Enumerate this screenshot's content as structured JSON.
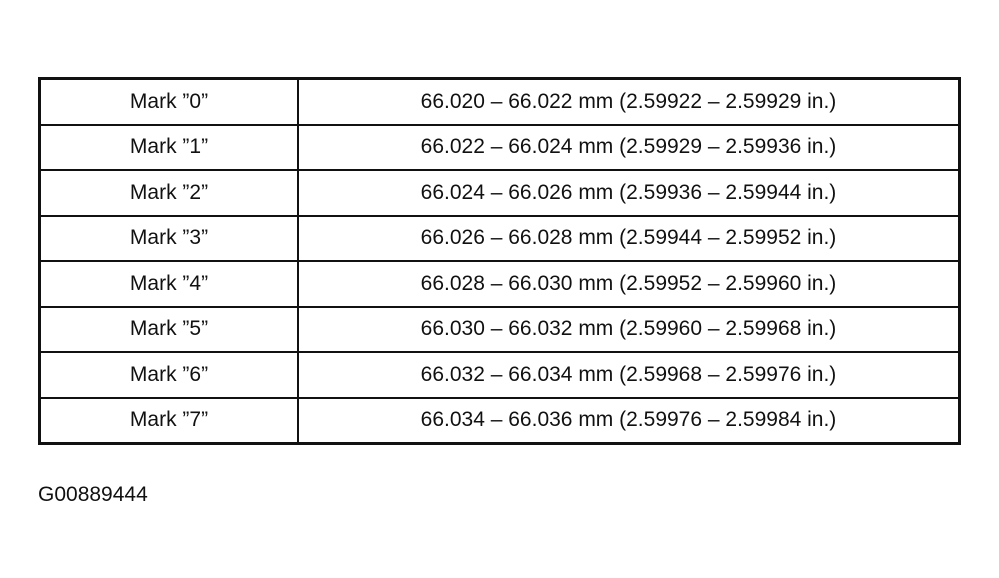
{
  "table": {
    "rows": [
      {
        "mark": "Mark ”0”",
        "range": "66.020 – 66.022 mm (2.59922 – 2.59929 in.)"
      },
      {
        "mark": "Mark ”1”",
        "range": "66.022 – 66.024 mm (2.59929 – 2.59936 in.)"
      },
      {
        "mark": "Mark ”2”",
        "range": "66.024 – 66.026 mm (2.59936 – 2.59944 in.)"
      },
      {
        "mark": "Mark ”3”",
        "range": "66.026 – 66.028 mm (2.59944 – 2.59952 in.)"
      },
      {
        "mark": "Mark ”4”",
        "range": "66.028 – 66.030 mm (2.59952 – 2.59960 in.)"
      },
      {
        "mark": "Mark ”5”",
        "range": "66.030 – 66.032 mm (2.59960 – 2.59968 in.)"
      },
      {
        "mark": "Mark ”6”",
        "range": "66.032 – 66.034 mm (2.59968 – 2.59976 in.)"
      },
      {
        "mark": "Mark ”7”",
        "range": "66.034 – 66.036 mm (2.59976 – 2.59984 in.)"
      }
    ]
  },
  "caption": "G00889444"
}
